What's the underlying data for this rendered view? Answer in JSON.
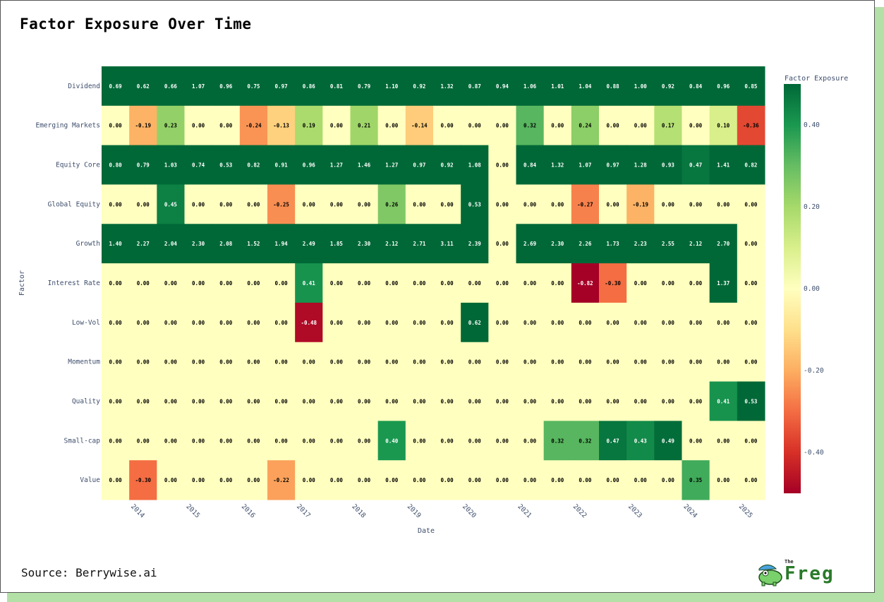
{
  "title": "Factor Exposure Over Time",
  "source": "Source: Berrywise.ai",
  "brand": {
    "small": "The",
    "name": "Freg"
  },
  "chart_data": {
    "type": "heatmap",
    "title": "Factor Exposure Over Time",
    "xlabel": "Date",
    "ylabel": "Factor",
    "colorbar_title": "Factor Exposure",
    "colorbar_ticks": [
      "0.40",
      "0.20",
      "0.00",
      "-0.20",
      "-0.40"
    ],
    "colorbar_tick_values": [
      0.4,
      0.2,
      0,
      -0.2,
      -0.4
    ],
    "zrange": [
      -0.5,
      0.5
    ],
    "colorscale": "RdYlGn",
    "x_ticks": [
      "2014",
      "2015",
      "2016",
      "2017",
      "2018",
      "2019",
      "2020",
      "2021",
      "2022",
      "2023",
      "2024",
      "2025"
    ],
    "factors": [
      "Dividend",
      "Emerging Markets",
      "Equity Core",
      "Global Equity",
      "Growth",
      "Interest Rate",
      "Low-Vol",
      "Momentum",
      "Quality",
      "Small-cap",
      "Value"
    ],
    "values": [
      [
        "0.69",
        "0.62",
        "0.66",
        "1.07",
        "0.96",
        "0.75",
        "0.97",
        "0.86",
        "0.81",
        "0.79",
        "1.10",
        "0.92",
        "1.32",
        "0.87",
        "0.94",
        "1.06",
        "1.01",
        "1.04",
        "0.88",
        "1.00",
        "0.92",
        "0.84",
        "0.96",
        "0.85"
      ],
      [
        "0.00",
        "-0.19",
        "0.23",
        "0.00",
        "0.00",
        "-0.24",
        "-0.13",
        "0.19",
        "0.00",
        "0.21",
        "0.00",
        "-0.14",
        "0.00",
        "0.00",
        "0.00",
        "0.32",
        "0.00",
        "0.24",
        "0.00",
        "0.00",
        "0.17",
        "0.00",
        "0.10",
        "-0.36"
      ],
      [
        "0.80",
        "0.79",
        "1.03",
        "0.74",
        "0.53",
        "0.82",
        "0.91",
        "0.96",
        "1.27",
        "1.46",
        "1.27",
        "0.97",
        "0.92",
        "1.08",
        "0.00",
        "0.84",
        "1.32",
        "1.07",
        "0.97",
        "1.28",
        "0.93",
        "0.47",
        "1.41",
        "0.82"
      ],
      [
        "0.00",
        "0.00",
        "0.45",
        "0.00",
        "0.00",
        "0.00",
        "-0.25",
        "0.00",
        "0.00",
        "0.00",
        "0.26",
        "0.00",
        "0.00",
        "0.53",
        "0.00",
        "0.00",
        "0.00",
        "-0.27",
        "0.00",
        "-0.19",
        "0.00",
        "0.00",
        "0.00",
        "0.00"
      ],
      [
        "1.40",
        "2.27",
        "2.04",
        "2.30",
        "2.08",
        "1.52",
        "1.94",
        "2.49",
        "1.85",
        "2.30",
        "2.12",
        "2.71",
        "3.11",
        "2.39",
        "0.00",
        "2.69",
        "2.30",
        "2.26",
        "1.73",
        "2.23",
        "2.55",
        "2.12",
        "2.70",
        "0.00"
      ],
      [
        "0.00",
        "0.00",
        "0.00",
        "0.00",
        "0.00",
        "0.00",
        "0.00",
        "0.41",
        "0.00",
        "0.00",
        "0.00",
        "0.00",
        "0.00",
        "0.00",
        "0.00",
        "0.00",
        "0.00",
        "-0.82",
        "-0.30",
        "0.00",
        "0.00",
        "0.00",
        "1.37",
        "0.00"
      ],
      [
        "0.00",
        "0.00",
        "0.00",
        "0.00",
        "0.00",
        "0.00",
        "0.00",
        "-0.48",
        "0.00",
        "0.00",
        "0.00",
        "0.00",
        "0.00",
        "0.62",
        "0.00",
        "0.00",
        "0.00",
        "0.00",
        "0.00",
        "0.00",
        "0.00",
        "0.00",
        "0.00",
        "0.00"
      ],
      [
        "0.00",
        "0.00",
        "0.00",
        "0.00",
        "0.00",
        "0.00",
        "0.00",
        "0.00",
        "0.00",
        "0.00",
        "0.00",
        "0.00",
        "0.00",
        "0.00",
        "0.00",
        "0.00",
        "0.00",
        "0.00",
        "0.00",
        "0.00",
        "0.00",
        "0.00",
        "0.00",
        "0.00"
      ],
      [
        "0.00",
        "0.00",
        "0.00",
        "0.00",
        "0.00",
        "0.00",
        "0.00",
        "0.00",
        "0.00",
        "0.00",
        "0.00",
        "0.00",
        "0.00",
        "0.00",
        "0.00",
        "0.00",
        "0.00",
        "0.00",
        "0.00",
        "0.00",
        "0.00",
        "0.00",
        "0.41",
        "0.53"
      ],
      [
        "0.00",
        "0.00",
        "0.00",
        "0.00",
        "0.00",
        "0.00",
        "0.00",
        "0.00",
        "0.00",
        "0.00",
        "0.40",
        "0.00",
        "0.00",
        "0.00",
        "0.00",
        "0.00",
        "0.32",
        "0.32",
        "0.47",
        "0.43",
        "0.49",
        "0.00",
        "0.00",
        "0.00"
      ],
      [
        "0.00",
        "-0.30",
        "0.00",
        "0.00",
        "0.00",
        "0.00",
        "-0.22",
        "0.00",
        "0.00",
        "0.00",
        "0.00",
        "0.00",
        "0.00",
        "0.00",
        "0.00",
        "0.00",
        "0.00",
        "0.00",
        "0.00",
        "0.00",
        "0.00",
        "0.35",
        "0.00",
        "0.00"
      ]
    ]
  }
}
